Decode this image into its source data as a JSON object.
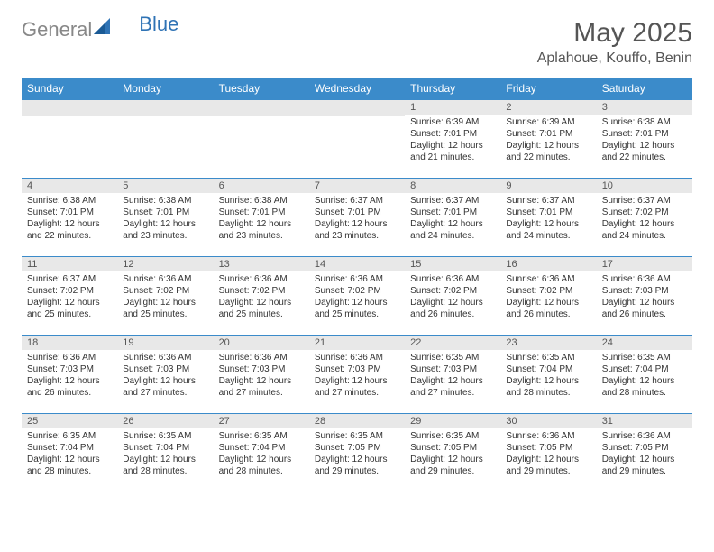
{
  "logo": {
    "part1": "General",
    "part2": "Blue"
  },
  "title": "May 2025",
  "location": "Aplahoue, Kouffo, Benin",
  "colors": {
    "header_bg": "#3b8bca",
    "header_text": "#ffffff",
    "daynum_bg": "#e8e8e8",
    "border": "#3b8bca",
    "text": "#333333",
    "title_text": "#555555"
  },
  "weekdays": [
    "Sunday",
    "Monday",
    "Tuesday",
    "Wednesday",
    "Thursday",
    "Friday",
    "Saturday"
  ],
  "weeks": [
    [
      {
        "n": "",
        "sr": "",
        "ss": "",
        "dl": ""
      },
      {
        "n": "",
        "sr": "",
        "ss": "",
        "dl": ""
      },
      {
        "n": "",
        "sr": "",
        "ss": "",
        "dl": ""
      },
      {
        "n": "",
        "sr": "",
        "ss": "",
        "dl": ""
      },
      {
        "n": "1",
        "sr": "Sunrise: 6:39 AM",
        "ss": "Sunset: 7:01 PM",
        "dl": "Daylight: 12 hours and 21 minutes."
      },
      {
        "n": "2",
        "sr": "Sunrise: 6:39 AM",
        "ss": "Sunset: 7:01 PM",
        "dl": "Daylight: 12 hours and 22 minutes."
      },
      {
        "n": "3",
        "sr": "Sunrise: 6:38 AM",
        "ss": "Sunset: 7:01 PM",
        "dl": "Daylight: 12 hours and 22 minutes."
      }
    ],
    [
      {
        "n": "4",
        "sr": "Sunrise: 6:38 AM",
        "ss": "Sunset: 7:01 PM",
        "dl": "Daylight: 12 hours and 22 minutes."
      },
      {
        "n": "5",
        "sr": "Sunrise: 6:38 AM",
        "ss": "Sunset: 7:01 PM",
        "dl": "Daylight: 12 hours and 23 minutes."
      },
      {
        "n": "6",
        "sr": "Sunrise: 6:38 AM",
        "ss": "Sunset: 7:01 PM",
        "dl": "Daylight: 12 hours and 23 minutes."
      },
      {
        "n": "7",
        "sr": "Sunrise: 6:37 AM",
        "ss": "Sunset: 7:01 PM",
        "dl": "Daylight: 12 hours and 23 minutes."
      },
      {
        "n": "8",
        "sr": "Sunrise: 6:37 AM",
        "ss": "Sunset: 7:01 PM",
        "dl": "Daylight: 12 hours and 24 minutes."
      },
      {
        "n": "9",
        "sr": "Sunrise: 6:37 AM",
        "ss": "Sunset: 7:01 PM",
        "dl": "Daylight: 12 hours and 24 minutes."
      },
      {
        "n": "10",
        "sr": "Sunrise: 6:37 AM",
        "ss": "Sunset: 7:02 PM",
        "dl": "Daylight: 12 hours and 24 minutes."
      }
    ],
    [
      {
        "n": "11",
        "sr": "Sunrise: 6:37 AM",
        "ss": "Sunset: 7:02 PM",
        "dl": "Daylight: 12 hours and 25 minutes."
      },
      {
        "n": "12",
        "sr": "Sunrise: 6:36 AM",
        "ss": "Sunset: 7:02 PM",
        "dl": "Daylight: 12 hours and 25 minutes."
      },
      {
        "n": "13",
        "sr": "Sunrise: 6:36 AM",
        "ss": "Sunset: 7:02 PM",
        "dl": "Daylight: 12 hours and 25 minutes."
      },
      {
        "n": "14",
        "sr": "Sunrise: 6:36 AM",
        "ss": "Sunset: 7:02 PM",
        "dl": "Daylight: 12 hours and 25 minutes."
      },
      {
        "n": "15",
        "sr": "Sunrise: 6:36 AM",
        "ss": "Sunset: 7:02 PM",
        "dl": "Daylight: 12 hours and 26 minutes."
      },
      {
        "n": "16",
        "sr": "Sunrise: 6:36 AM",
        "ss": "Sunset: 7:02 PM",
        "dl": "Daylight: 12 hours and 26 minutes."
      },
      {
        "n": "17",
        "sr": "Sunrise: 6:36 AM",
        "ss": "Sunset: 7:03 PM",
        "dl": "Daylight: 12 hours and 26 minutes."
      }
    ],
    [
      {
        "n": "18",
        "sr": "Sunrise: 6:36 AM",
        "ss": "Sunset: 7:03 PM",
        "dl": "Daylight: 12 hours and 26 minutes."
      },
      {
        "n": "19",
        "sr": "Sunrise: 6:36 AM",
        "ss": "Sunset: 7:03 PM",
        "dl": "Daylight: 12 hours and 27 minutes."
      },
      {
        "n": "20",
        "sr": "Sunrise: 6:36 AM",
        "ss": "Sunset: 7:03 PM",
        "dl": "Daylight: 12 hours and 27 minutes."
      },
      {
        "n": "21",
        "sr": "Sunrise: 6:36 AM",
        "ss": "Sunset: 7:03 PM",
        "dl": "Daylight: 12 hours and 27 minutes."
      },
      {
        "n": "22",
        "sr": "Sunrise: 6:35 AM",
        "ss": "Sunset: 7:03 PM",
        "dl": "Daylight: 12 hours and 27 minutes."
      },
      {
        "n": "23",
        "sr": "Sunrise: 6:35 AM",
        "ss": "Sunset: 7:04 PM",
        "dl": "Daylight: 12 hours and 28 minutes."
      },
      {
        "n": "24",
        "sr": "Sunrise: 6:35 AM",
        "ss": "Sunset: 7:04 PM",
        "dl": "Daylight: 12 hours and 28 minutes."
      }
    ],
    [
      {
        "n": "25",
        "sr": "Sunrise: 6:35 AM",
        "ss": "Sunset: 7:04 PM",
        "dl": "Daylight: 12 hours and 28 minutes."
      },
      {
        "n": "26",
        "sr": "Sunrise: 6:35 AM",
        "ss": "Sunset: 7:04 PM",
        "dl": "Daylight: 12 hours and 28 minutes."
      },
      {
        "n": "27",
        "sr": "Sunrise: 6:35 AM",
        "ss": "Sunset: 7:04 PM",
        "dl": "Daylight: 12 hours and 28 minutes."
      },
      {
        "n": "28",
        "sr": "Sunrise: 6:35 AM",
        "ss": "Sunset: 7:05 PM",
        "dl": "Daylight: 12 hours and 29 minutes."
      },
      {
        "n": "29",
        "sr": "Sunrise: 6:35 AM",
        "ss": "Sunset: 7:05 PM",
        "dl": "Daylight: 12 hours and 29 minutes."
      },
      {
        "n": "30",
        "sr": "Sunrise: 6:36 AM",
        "ss": "Sunset: 7:05 PM",
        "dl": "Daylight: 12 hours and 29 minutes."
      },
      {
        "n": "31",
        "sr": "Sunrise: 6:36 AM",
        "ss": "Sunset: 7:05 PM",
        "dl": "Daylight: 12 hours and 29 minutes."
      }
    ]
  ]
}
